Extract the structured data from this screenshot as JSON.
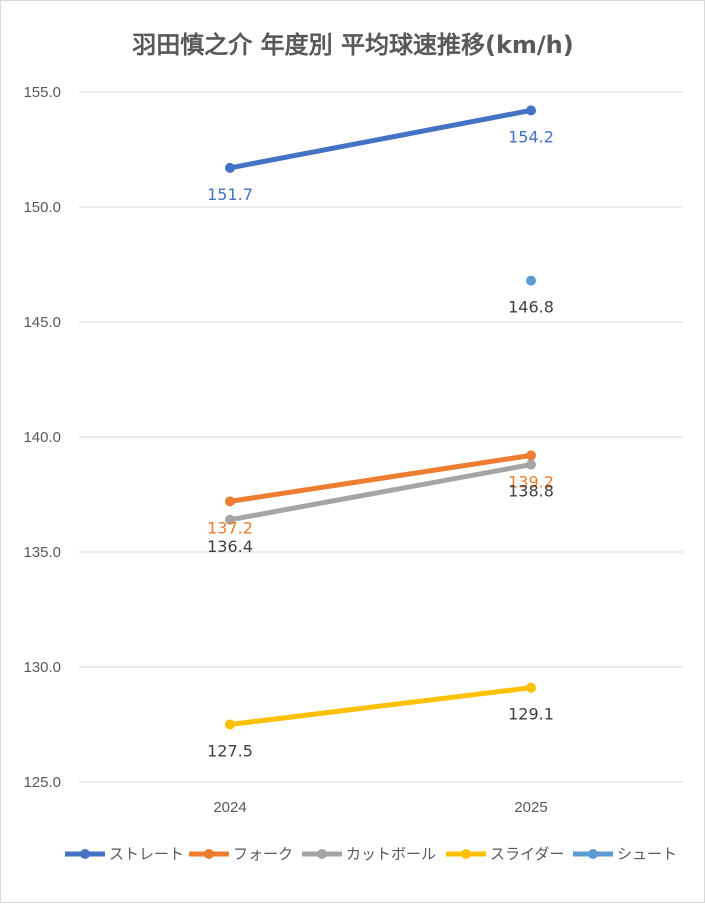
{
  "chart_data": {
    "type": "line",
    "title": "羽田慎之介 年度別 平均球速推移(km/h)",
    "categories": [
      "2024",
      "2025"
    ],
    "ylim": [
      125.0,
      155.0
    ],
    "ytick_step": 5,
    "ytick_labels": [
      "125.0",
      "130.0",
      "135.0",
      "140.0",
      "145.0",
      "150.0",
      "155.0"
    ],
    "grid": true,
    "legend_position": "bottom",
    "series": [
      {
        "name": "ストレート",
        "color": "#4472c4",
        "values": [
          151.7,
          154.2
        ],
        "labels": [
          "151.7",
          "154.2"
        ],
        "label_color": "#4472c4"
      },
      {
        "name": "フォーク",
        "color": "#ed7d31",
        "values": [
          137.2,
          139.2
        ],
        "labels": [
          "137.2",
          "139.2"
        ],
        "label_color": "#ed7d31"
      },
      {
        "name": "カットボール",
        "color": "#a5a5a5",
        "values": [
          136.4,
          138.8
        ],
        "labels": [
          "136.4",
          "138.8"
        ],
        "label_color": "#404040"
      },
      {
        "name": "スライダー",
        "color": "#ffc000",
        "values": [
          127.5,
          129.1
        ],
        "labels": [
          "127.5",
          "129.1"
        ],
        "label_color": "#404040"
      },
      {
        "name": "シュート",
        "color": "#5b9bd5",
        "values": [
          null,
          146.8
        ],
        "labels": [
          null,
          "146.8"
        ],
        "label_color": "#404040"
      }
    ]
  }
}
